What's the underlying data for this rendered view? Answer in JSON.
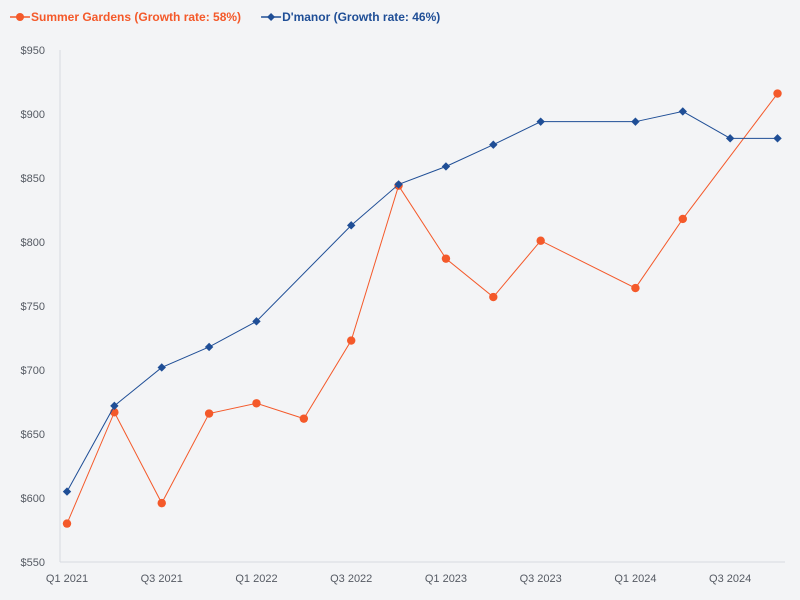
{
  "chart_data": {
    "type": "line",
    "title": "",
    "xlabel": "",
    "ylabel": "",
    "ylim": [
      550,
      950
    ],
    "ytick_values": [
      550,
      600,
      650,
      700,
      750,
      800,
      850,
      900,
      950
    ],
    "ytick_labels": [
      "$550",
      "$600",
      "$650",
      "$700",
      "$750",
      "$800",
      "$850",
      "$900",
      "$950"
    ],
    "x_tick_labels": [
      "Q1 2021",
      "Q3 2021",
      "Q1 2022",
      "Q3 2022",
      "Q1 2023",
      "Q3 2023",
      "Q1 2024",
      "Q3 2024"
    ],
    "x_range": [
      0,
      15.2
    ],
    "legend_position": "top-left",
    "series": [
      {
        "name": "Summer Gardens (Growth rate: 58%)",
        "color": "#f4592a",
        "marker": "circle",
        "x": [
          0,
          1,
          2,
          3,
          4,
          5,
          6,
          7,
          8,
          9,
          10,
          12,
          13,
          15
        ],
        "values": [
          580,
          667,
          596,
          666,
          674,
          662,
          723,
          844,
          787,
          757,
          801,
          764,
          818,
          916
        ]
      },
      {
        "name": "D'manor (Growth rate: 46%)",
        "color": "#1f4e96",
        "marker": "diamond",
        "x": [
          0,
          1,
          2,
          3,
          4,
          6,
          7,
          8,
          9,
          10,
          12,
          13,
          14,
          15
        ],
        "values": [
          605,
          672,
          702,
          718,
          738,
          813,
          845,
          859,
          876,
          894,
          894,
          902,
          881,
          881
        ]
      }
    ]
  }
}
